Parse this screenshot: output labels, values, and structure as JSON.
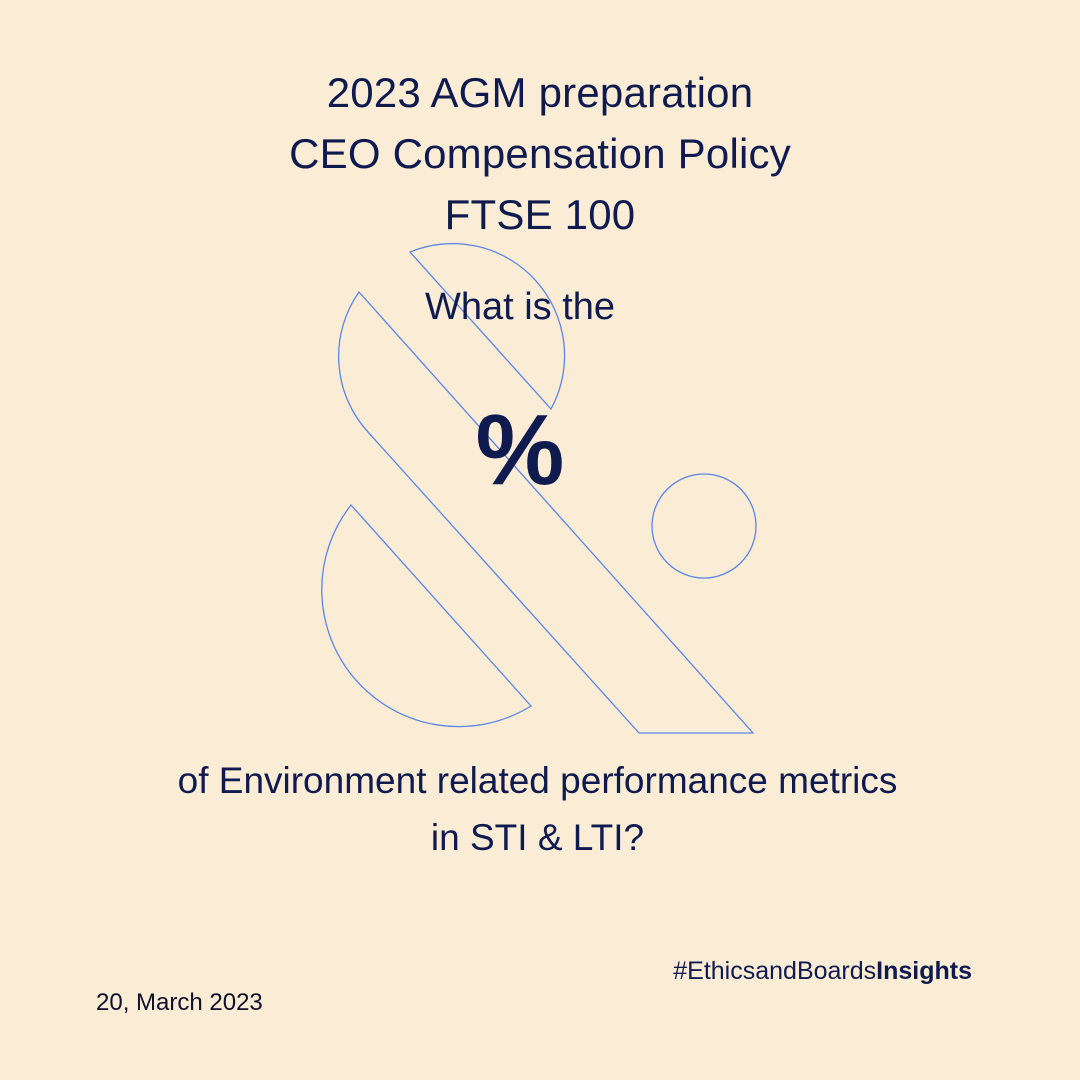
{
  "title": {
    "lines": [
      "2023 AGM preparation",
      "CEO Compensation Policy",
      "FTSE 100"
    ]
  },
  "question": {
    "lead": "What is the",
    "symbol": "%",
    "rest_lines": [
      "of Environment related performance metrics",
      "in STI & LTI?"
    ]
  },
  "footer": {
    "hashtag_regular": "#EthicsandBoards",
    "hashtag_bold": "Insights",
    "date": "20, March 2023"
  },
  "colors": {
    "background": "#fbecd6",
    "text": "#0f1a4f",
    "outline": "#5b86e6"
  },
  "graphic": {
    "icon": "ampersand-outline-icon"
  }
}
